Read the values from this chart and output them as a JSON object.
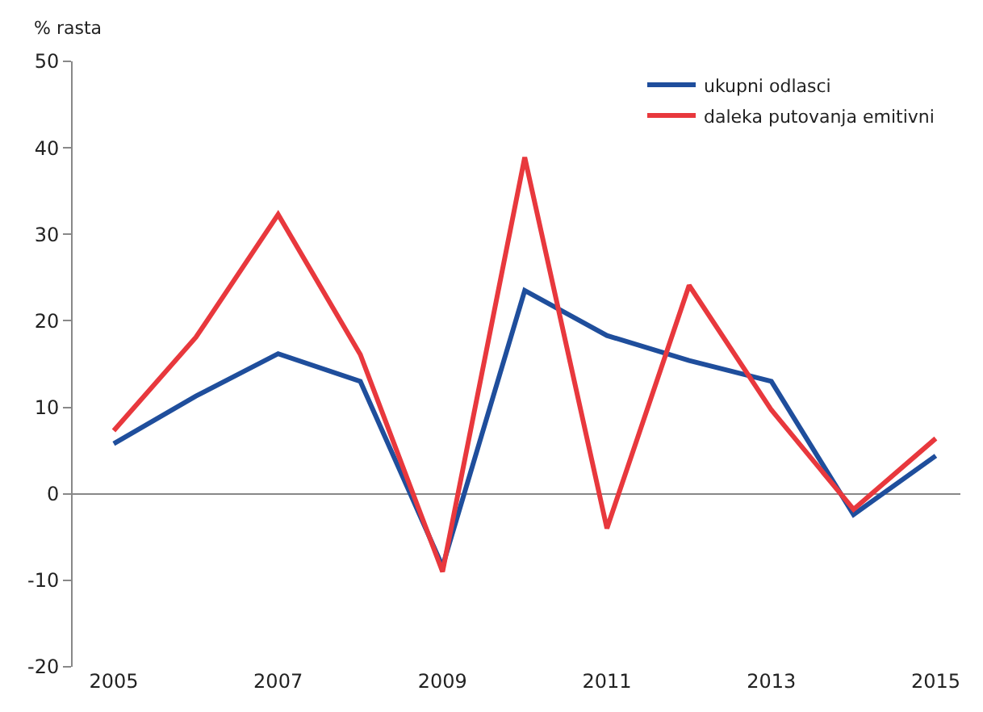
{
  "chart_data": {
    "type": "line",
    "ylabel": "% rasta",
    "x": [
      2005,
      2006,
      2007,
      2008,
      2009,
      2010,
      2011,
      2012,
      2013,
      2014,
      2015
    ],
    "series": [
      {
        "name": "ukupni odlasci",
        "color": "#1f4e9c",
        "values": [
          5.8,
          11.3,
          16.2,
          13.0,
          -8.4,
          23.5,
          18.3,
          15.4,
          13.0,
          -2.4,
          4.4
        ]
      },
      {
        "name": "daleka putovanja emitivni",
        "color": "#e8383d",
        "values": [
          7.3,
          18.1,
          32.3,
          16.1,
          -9.0,
          38.9,
          -4.0,
          24.1,
          9.7,
          -1.8,
          6.4
        ]
      }
    ],
    "xlim": [
      2004.5,
      2015.3
    ],
    "xticks": [
      2005,
      2007,
      2009,
      2011,
      2013,
      2015
    ],
    "ylim": [
      -20,
      50
    ],
    "yticks": [
      -20,
      -10,
      0,
      10,
      20,
      30,
      40,
      50
    ],
    "legend": "top right",
    "marker": "none",
    "line_style": "solid"
  }
}
